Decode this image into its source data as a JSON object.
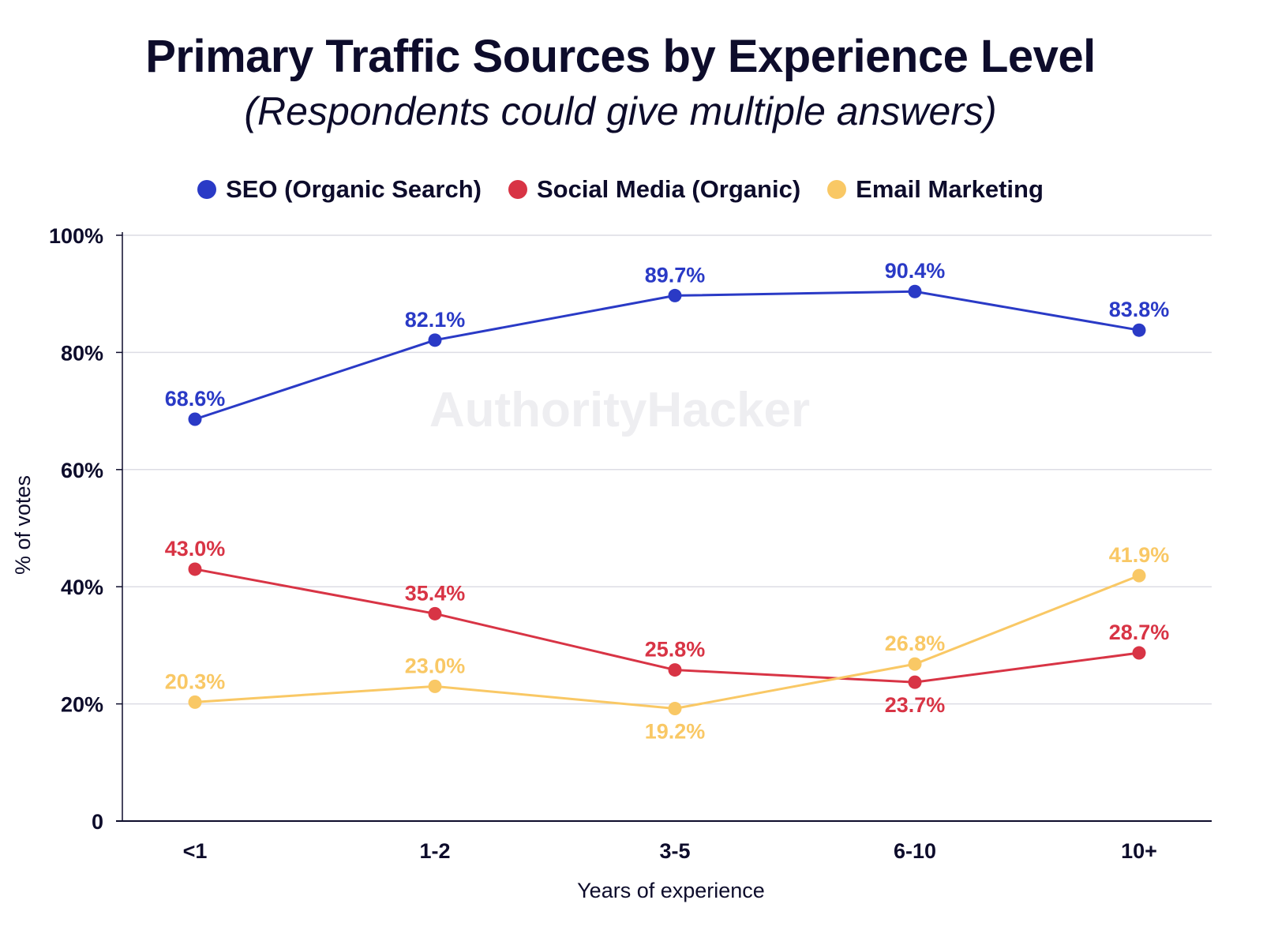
{
  "chart_data": {
    "type": "line",
    "title": "Primary Traffic Sources by Experience Level",
    "subtitle": "(Respondents could give multiple answers)",
    "xlabel": "Years of experience",
    "ylabel": "% of votes",
    "categories": [
      "<1",
      "1-2",
      "3-5",
      "6-10",
      "10+"
    ],
    "ylim": [
      0,
      100
    ],
    "yticks": [
      0,
      20,
      40,
      60,
      80,
      100
    ],
    "ytick_labels": [
      "0",
      "20%",
      "40%",
      "60%",
      "80%",
      "100%"
    ],
    "grid": true,
    "legend_position": "top-center",
    "watermark": "AuthorityHacker",
    "series": [
      {
        "name": "SEO (Organic Search)",
        "color": "#2a3ac6",
        "values": [
          68.6,
          82.1,
          89.7,
          90.4,
          83.8
        ],
        "labels": [
          "68.6%",
          "82.1%",
          "89.7%",
          "90.4%",
          "83.8%"
        ],
        "label_positions": [
          "above",
          "above",
          "above",
          "above",
          "above"
        ]
      },
      {
        "name": "Social Media (Organic)",
        "color": "#d83445",
        "values": [
          43.0,
          35.4,
          25.8,
          23.7,
          28.7
        ],
        "labels": [
          "43.0%",
          "35.4%",
          "25.8%",
          "23.7%",
          "28.7%"
        ],
        "label_positions": [
          "above",
          "above",
          "above",
          "below",
          "above"
        ]
      },
      {
        "name": "Email Marketing",
        "color": "#f9c865",
        "values": [
          20.3,
          23.0,
          19.2,
          26.8,
          41.9
        ],
        "labels": [
          "20.3%",
          "23.0%",
          "19.2%",
          "26.8%",
          "41.9%"
        ],
        "label_positions": [
          "above",
          "above",
          "below",
          "above",
          "above"
        ]
      }
    ]
  }
}
